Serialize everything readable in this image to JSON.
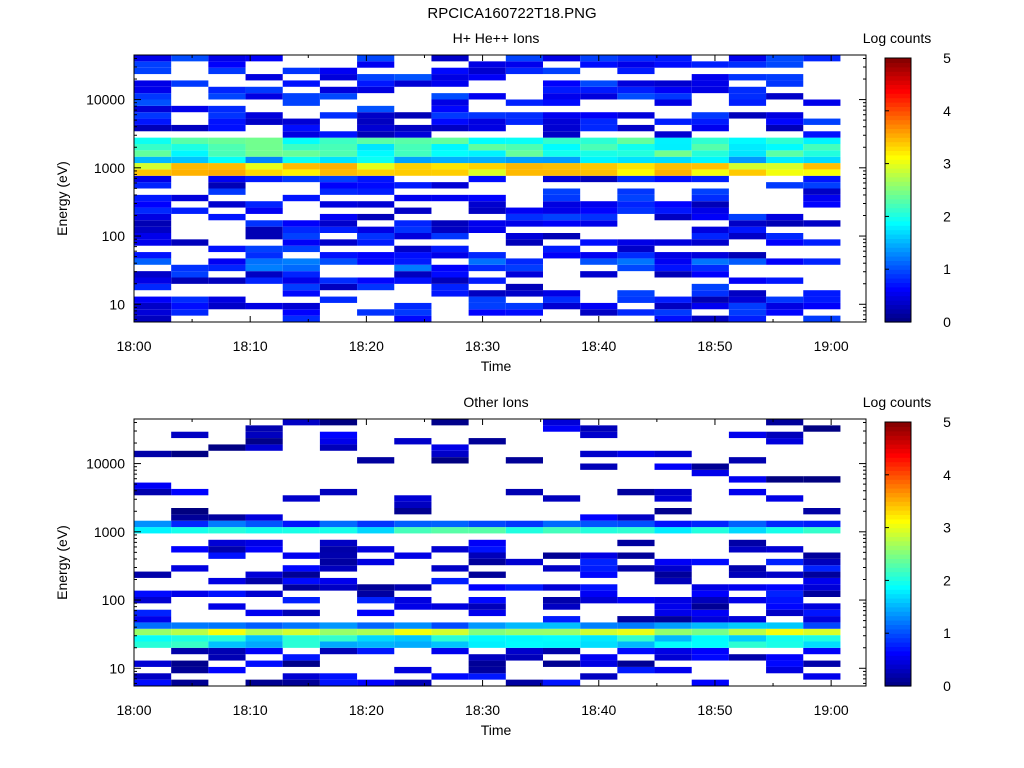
{
  "figure_title": "RPCICA160722T18.PNG",
  "colors": {
    "colormap": [
      "#000080",
      "#0000ff",
      "#0080ff",
      "#00ffff",
      "#80ff80",
      "#ffff00",
      "#ff8000",
      "#ff0000",
      "#800000"
    ]
  },
  "chart_data": [
    {
      "type": "heatmap",
      "title": "H+ He++ Ions",
      "xlabel": "Time",
      "ylabel": "Energy (eV)",
      "x_ticks": [
        "18:00",
        "18:10",
        "18:20",
        "18:30",
        "18:40",
        "18:50",
        "19:00"
      ],
      "x_range": [
        "18:00",
        "19:03"
      ],
      "y_scale": "log",
      "y_ticks": [
        "10",
        "100",
        "1000",
        "10000"
      ],
      "y_range": [
        5.5,
        45000
      ],
      "colorbar": {
        "label": "Log counts",
        "ticks": [
          "0",
          "1",
          "2",
          "3",
          "4",
          "5"
        ],
        "range": [
          0,
          5
        ]
      },
      "columns": 19,
      "column_step_minutes": 3.2,
      "bands": [
        {
          "energy_low": 6,
          "energy_high": 6200,
          "level": 0.6,
          "fill": 0.55
        },
        {
          "energy_low": 6200,
          "energy_high": 45000,
          "level": 0.7,
          "fill": 0.55
        },
        {
          "energy_low": 1500,
          "energy_high": 2600,
          "level": 2.1,
          "fill": 1.0
        },
        {
          "energy_low": 1100,
          "energy_high": 1500,
          "level": 1.6,
          "fill": 1.0
        },
        {
          "energy_low": 850,
          "energy_high": 1100,
          "level": 3.2,
          "fill": 1.0
        },
        {
          "energy_low": 700,
          "energy_high": 850,
          "level": 2.0,
          "fill": 1.0
        },
        {
          "energy_low": 28,
          "energy_high": 45,
          "level": 0.9,
          "fill": 0.7
        }
      ]
    },
    {
      "type": "heatmap",
      "title": "Other Ions",
      "xlabel": "Time",
      "ylabel": "Energy (eV)",
      "x_ticks": [
        "18:00",
        "18:10",
        "18:20",
        "18:30",
        "18:40",
        "18:50",
        "19:00"
      ],
      "x_range": [
        "18:00",
        "19:03"
      ],
      "y_scale": "log",
      "y_ticks": [
        "10",
        "100",
        "1000",
        "10000"
      ],
      "y_range": [
        5.5,
        45000
      ],
      "colorbar": {
        "label": "Log counts",
        "ticks": [
          "0",
          "1",
          "2",
          "3",
          "4",
          "5"
        ],
        "range": [
          0,
          5
        ]
      },
      "columns": 19,
      "column_step_minutes": 3.2,
      "bands": [
        {
          "energy_low": 6,
          "energy_high": 700,
          "level": 0.45,
          "fill": 0.5
        },
        {
          "energy_low": 1400,
          "energy_high": 45000,
          "level": 0.3,
          "fill": 0.22
        },
        {
          "energy_low": 900,
          "energy_high": 1200,
          "level": 2.0,
          "fill": 1.0
        },
        {
          "energy_low": 1200,
          "energy_high": 1400,
          "level": 1.0,
          "fill": 0.9
        },
        {
          "energy_low": 28,
          "energy_high": 40,
          "level": 2.8,
          "fill": 1.0
        },
        {
          "energy_low": 22,
          "energy_high": 28,
          "level": 1.8,
          "fill": 1.0
        },
        {
          "energy_low": 40,
          "energy_high": 48,
          "level": 1.3,
          "fill": 1.0
        },
        {
          "energy_low": 6,
          "energy_high": 12,
          "level": 0.4,
          "fill": 0.5
        }
      ]
    }
  ]
}
